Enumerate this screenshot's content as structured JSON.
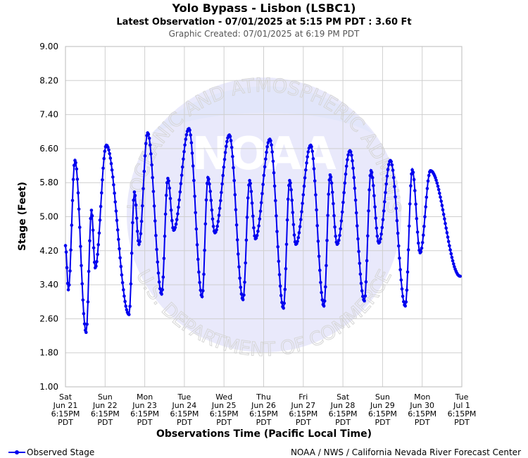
{
  "chart_data": {
    "type": "line",
    "title": "Yolo Bypass - Lisbon (LSBC1)",
    "subtitle": "Latest Observation - 07/01/2025 at 5:15 PM PDT : 3.60 Ft",
    "created": "Graphic Created: 07/01/2025 at 6:19 PM PDT",
    "xlabel": "Observations Time (Pacific Local Time)",
    "ylabel": "Stage (Feet)",
    "ylim": [
      1.0,
      9.0
    ],
    "yticks": [
      "9.00",
      "8.20",
      "7.40",
      "6.60",
      "5.80",
      "5.00",
      "4.20",
      "3.40",
      "2.60",
      "1.80",
      "1.00"
    ],
    "xlim_days_from_start": [
      0,
      10
    ],
    "xticks": [
      {
        "day": "Sat",
        "date": "Jun 21",
        "time": "6:15PM",
        "tz": "PDT"
      },
      {
        "day": "Sun",
        "date": "Jun 22",
        "time": "6:15PM",
        "tz": "PDT"
      },
      {
        "day": "Mon",
        "date": "Jun 23",
        "time": "6:15PM",
        "tz": "PDT"
      },
      {
        "day": "Tue",
        "date": "Jun 24",
        "time": "6:15PM",
        "tz": "PDT"
      },
      {
        "day": "Wed",
        "date": "Jun 25",
        "time": "6:15PM",
        "tz": "PDT"
      },
      {
        "day": "Thu",
        "date": "Jun 26",
        "time": "6:15PM",
        "tz": "PDT"
      },
      {
        "day": "Fri",
        "date": "Jun 27",
        "time": "6:15PM",
        "tz": "PDT"
      },
      {
        "day": "Sat",
        "date": "Jun 28",
        "time": "6:15PM",
        "tz": "PDT"
      },
      {
        "day": "Sun",
        "date": "Jun 29",
        "time": "6:15PM",
        "tz": "PDT"
      },
      {
        "day": "Mon",
        "date": "Jun 30",
        "time": "6:15PM",
        "tz": "PDT"
      },
      {
        "day": "Tue",
        "date": "Jul 1",
        "time": "6:15PM",
        "tz": "PDT"
      }
    ],
    "grid": true,
    "legend": {
      "position": "bottom-left"
    },
    "series": [
      {
        "name": "Observed Stage",
        "color": "#0000ee",
        "marker": "circle",
        "turning_points": [
          {
            "date": "Jun 21 6:15PM",
            "y": 4.32
          },
          {
            "date": "Jun 21 8:00PM",
            "y": 3.28
          },
          {
            "date": "Jun 22 12:00AM",
            "y": 6.32
          },
          {
            "date": "Jun 22 6:45AM",
            "y": 2.28
          },
          {
            "date": "Jun 22 10:00AM",
            "y": 5.15
          },
          {
            "date": "Jun 22 12:15PM",
            "y": 3.8
          },
          {
            "date": "Jun 22 7:00PM",
            "y": 6.68
          },
          {
            "date": "Jun 23 8:45AM",
            "y": 2.7
          },
          {
            "date": "Jun 23 12:00PM",
            "y": 5.58
          },
          {
            "date": "Jun 23 2:45PM",
            "y": 4.35
          },
          {
            "date": "Jun 23 8:00PM",
            "y": 6.97
          },
          {
            "date": "Jun 24 4:30AM",
            "y": 3.18
          },
          {
            "date": "Jun 24 8:15AM",
            "y": 5.9
          },
          {
            "date": "Jun 24 11:45AM",
            "y": 4.68
          },
          {
            "date": "Jun 24 9:00PM",
            "y": 7.07
          },
          {
            "date": "Jun 25 5:00AM",
            "y": 3.12
          },
          {
            "date": "Jun 25 8:30AM",
            "y": 5.92
          },
          {
            "date": "Jun 25 12:45PM",
            "y": 4.62
          },
          {
            "date": "Jun 25 9:30PM",
            "y": 6.92
          },
          {
            "date": "Jun 26 5:45AM",
            "y": 3.05
          },
          {
            "date": "Jun 26 9:45AM",
            "y": 5.85
          },
          {
            "date": "Jun 26 1:15PM",
            "y": 4.48
          },
          {
            "date": "Jun 26 10:00PM",
            "y": 6.82
          },
          {
            "date": "Jun 27 6:15AM",
            "y": 2.85
          },
          {
            "date": "Jun 27 10:00AM",
            "y": 5.85
          },
          {
            "date": "Jun 27 1:45PM",
            "y": 4.35
          },
          {
            "date": "Jun 27 10:45PM",
            "y": 6.68
          },
          {
            "date": "Jun 28 6:45AM",
            "y": 2.9
          },
          {
            "date": "Jun 28 10:30AM",
            "y": 5.98
          },
          {
            "date": "Jun 28 2:45PM",
            "y": 4.35
          },
          {
            "date": "Jun 28 10:30PM",
            "y": 6.55
          },
          {
            "date": "Jun 29 7:15AM",
            "y": 3.02
          },
          {
            "date": "Jun 29 11:15AM",
            "y": 6.08
          },
          {
            "date": "Jun 29 4:00PM",
            "y": 4.38
          },
          {
            "date": "Jun 29 11:00PM",
            "y": 6.32
          },
          {
            "date": "Jun 30 8:00AM",
            "y": 2.9
          },
          {
            "date": "Jun 30 12:15PM",
            "y": 6.1
          },
          {
            "date": "Jun 30 5:00PM",
            "y": 4.15
          },
          {
            "date": "Jun 30 11:15PM",
            "y": 6.08
          },
          {
            "date": "Jul 1 5:15PM",
            "y": 3.6
          }
        ]
      }
    ]
  },
  "watermark": {
    "top_text": "NATIONAL OCEANIC AND ATMOSPHERIC ADMINISTRATION",
    "bottom_text": "U.S. DEPARTMENT OF COMMERCE",
    "logo_text": "NOAA",
    "color": "#e9e9fb"
  },
  "legend_label": "Observed Stage",
  "footer_credit": "NOAA / NWS / California Nevada River Forecast Center"
}
